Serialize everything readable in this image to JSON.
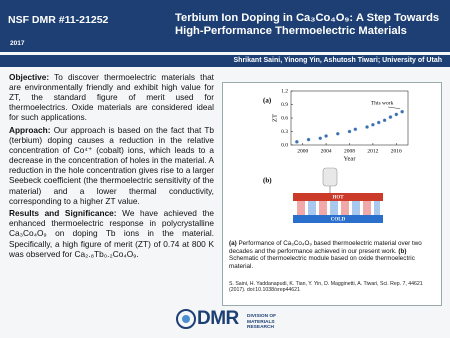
{
  "header": {
    "program": "NSF DMR #11-21252",
    "year": "2017",
    "title": "Terbium Ion Doping in Ca₃Co₄O₉: A Step Towards High-Performance Thermoelectric Materials"
  },
  "authors": "Shrikant Saini, Yinong Yin, Ashutosh Tiwari; University of Utah",
  "sections": [
    {
      "heading": "Objective:",
      "text": " To discover thermoelectric materials that are environmentally friendly and exhibit high value for ZT, the standard figure of merit used for thermoelectrics. Oxide materials are considered ideal for such applications."
    },
    {
      "heading": "Approach:",
      "text": " Our approach is based on the fact that Tb (terbium) doping causes a reduction in the relative concentration of Co⁴⁺ (cobalt) ions, which leads to a decrease in the concentration of holes in the material. A reduction in the hole concentration gives rise to a larger Seebeck coefficient (the thermoelectric sensitivity of the material) and a lower thermal conductivity, corresponding to a higher ZT value."
    },
    {
      "heading": "Results and Significance:",
      "text": " We have achieved the enhanced thermoelectric response in polycrystalline Ca₃Co₄O₉ on doping Tb ions in the material. Specifically, a high figure of merit (ZT) of 0.74 at 800 K was observed for Ca₂.₈Tb₀.₂Co₄O₉."
    }
  ],
  "figure": {
    "panel_a": {
      "label": "(a)",
      "x_label": "Year",
      "y_label": "ZT",
      "annotation": "This work",
      "xlim": [
        1998,
        2018
      ],
      "ylim": [
        0,
        1.2
      ],
      "xticks": [
        2000,
        2004,
        2008,
        2012,
        2016
      ],
      "yticks": [
        {
          "value": 0,
          "label": "0.0"
        },
        0.3,
        0.6,
        0.9,
        1.2
      ],
      "x": [
        1999,
        2001,
        2003,
        2004,
        2006,
        2008,
        2009,
        2011,
        2012,
        2013,
        2014,
        2015,
        2016,
        2017
      ],
      "values": [
        0.07,
        0.12,
        0.15,
        0.2,
        0.25,
        0.3,
        0.35,
        0.4,
        0.45,
        0.5,
        0.55,
        0.62,
        0.68,
        0.74
      ],
      "color": "#3a6fb0"
    },
    "panel_b": {
      "label": "(b)",
      "hot": "HOT",
      "cold": "COLD"
    },
    "caption": [
      {
        "label": "(a)",
        "text": " Performance of Ca₃Co₄O₉ based thermoelectric material over two decades and the performance achieved in our present work. "
      },
      {
        "label": "(b)",
        "text": " Schematic of thermoelectric module based on oxide thermoelectric material."
      }
    ],
    "reference": "S. Saini, H. Yaddanapudi, K. Tian, Y. Yin, D. Magginetti, A. Tiwari, Sci. Rep. 7, 44621 (2017). doi:10.1038/srep44621"
  },
  "footer": {
    "logo": "DMR",
    "tagline": [
      "DIVISION OF",
      "MATERIALS RESEARCH"
    ]
  }
}
